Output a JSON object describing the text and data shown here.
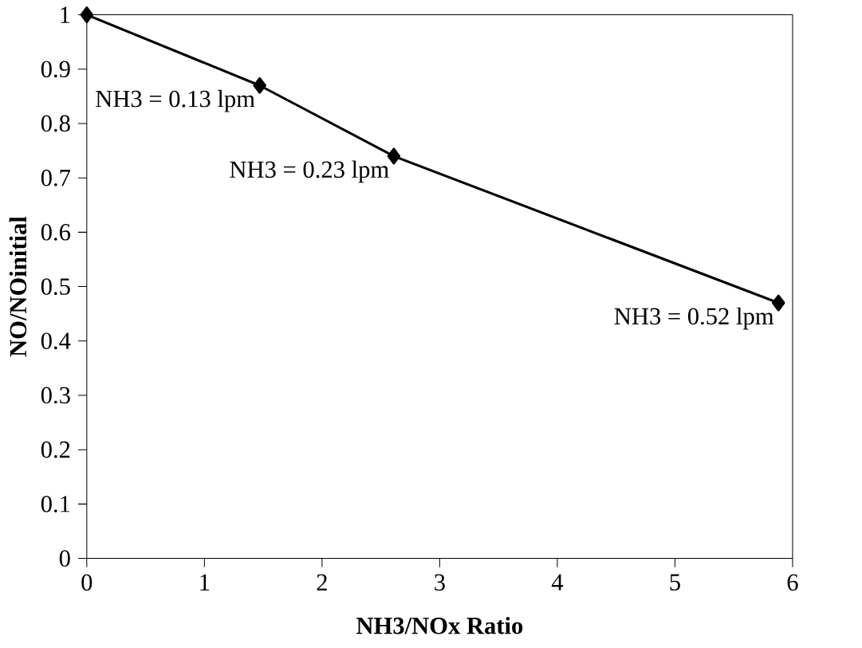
{
  "chart_data": {
    "type": "line",
    "xlabel": "NH3/NOx Ratio",
    "ylabel": "NO/NOinitial",
    "x": [
      0,
      1.47,
      2.61,
      5.88
    ],
    "values": [
      1,
      0.87,
      0.74,
      0.47
    ],
    "color": "#000000",
    "marker": "diamond",
    "line_style": "solid",
    "grid": false,
    "xlim": [
      0,
      6
    ],
    "ylim": [
      0,
      1
    ],
    "xticks": [
      0,
      1,
      2,
      3,
      4,
      5,
      6
    ],
    "yticks": [
      0,
      0.1,
      0.2,
      0.3,
      0.4,
      0.5,
      0.6,
      0.7,
      0.8,
      0.9,
      1
    ],
    "annotations": [
      {
        "text": "NH3 = 0.13 lpm",
        "x": 1.47,
        "y": 0.87
      },
      {
        "text": "NH3 = 0.23 lpm",
        "x": 2.61,
        "y": 0.74
      },
      {
        "text": "NH3 = 0.52 lpm",
        "x": 5.88,
        "y": 0.47
      }
    ]
  }
}
